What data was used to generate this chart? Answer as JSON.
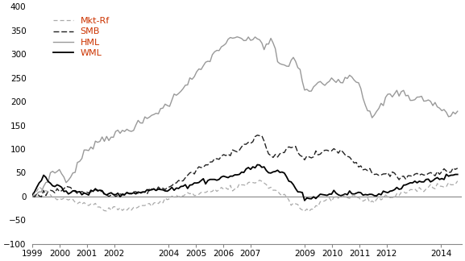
{
  "title": "",
  "xlabel": "",
  "ylabel": "",
  "ylim": [
    -100,
    400
  ],
  "yticks": [
    -100,
    -50,
    0,
    50,
    100,
    150,
    200,
    250,
    300,
    350,
    400
  ],
  "xtick_positions": [
    1999,
    2000,
    2001,
    2002,
    2004,
    2005,
    2006,
    2007,
    2009,
    2010,
    2011,
    2012,
    2014
  ],
  "xtick_labels": [
    "1999",
    "2000",
    "2001",
    "2002",
    "2004",
    "2005",
    "2006",
    "2007",
    "2009",
    "2010",
    "2011",
    "2012",
    "2014"
  ],
  "legend_labels": [
    "Mkt-Rf",
    "SMB",
    "HML",
    "WML"
  ],
  "legend_label_colors": [
    "#c0392b",
    "#c0392b",
    "#c0392b",
    "#c0392b"
  ],
  "mkt_rf_color": "#aaaaaa",
  "smb_color": "#222222",
  "hml_color": "#999999",
  "wml_color": "#000000",
  "background_color": "#ffffff"
}
